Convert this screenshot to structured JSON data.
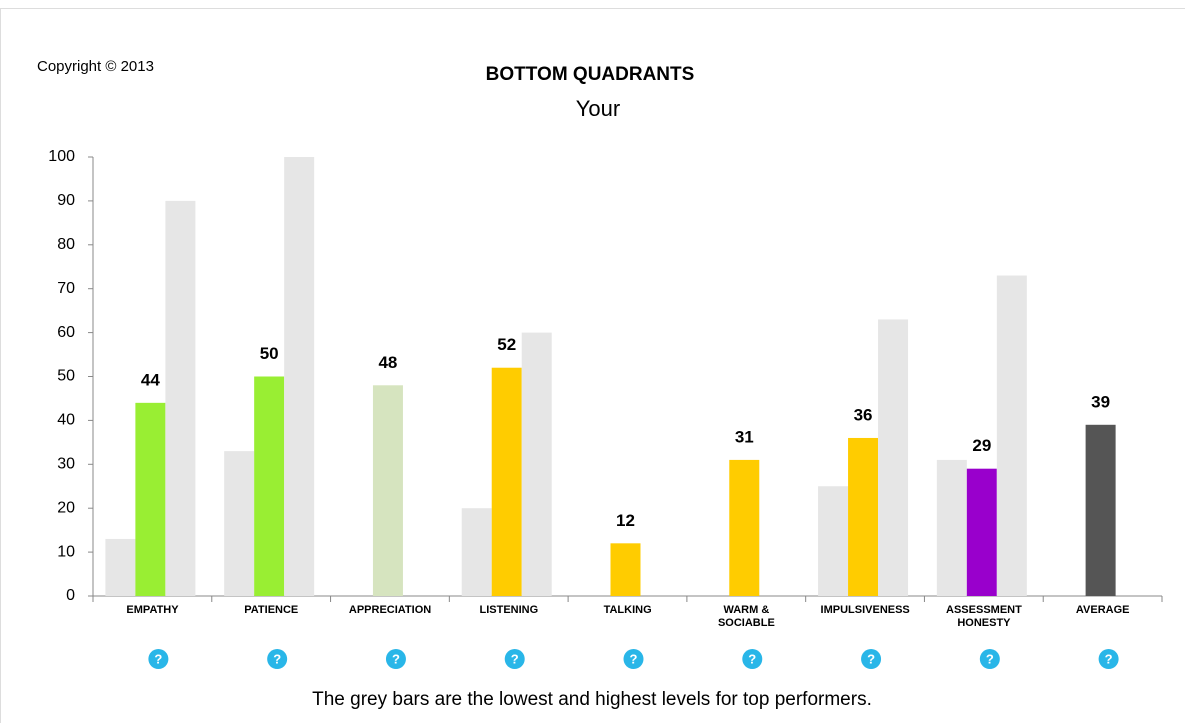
{
  "copyright": "Copyright © 2013",
  "chart_data": {
    "type": "bar",
    "title": "BOTTOM QUADRANTS",
    "subtitle": "Your",
    "categories": [
      "EMPATHY",
      "PATIENCE",
      "APPRECIATION",
      "LISTENING",
      "TALKING",
      "WARM & SOCIABLE",
      "IMPULSIVENESS",
      "ASSESSMENT HONESTY",
      "AVERAGE"
    ],
    "series": [
      {
        "color": "#e6e6e6",
        "values": [
          13,
          33,
          null,
          20,
          null,
          null,
          25,
          31,
          null
        ]
      },
      {
        "colors": [
          "#99ee33",
          "#99ee33",
          "#d6e4bf",
          "#ffcc00",
          "#ffcc00",
          "#ffcc00",
          "#ffcc00",
          "#9900cc",
          "#555555"
        ],
        "values": [
          44,
          50,
          48,
          52,
          12,
          31,
          36,
          29,
          39
        ],
        "labeled": true
      },
      {
        "color": "#e6e6e6",
        "values": [
          90,
          100,
          null,
          60,
          null,
          null,
          63,
          73,
          null
        ]
      }
    ],
    "ylim": [
      0,
      100
    ],
    "yticks": [
      0,
      10,
      20,
      30,
      40,
      50,
      60,
      70,
      80,
      90,
      100
    ],
    "grid": false
  },
  "help_icon": "?",
  "footer": "The grey bars are the lowest and highest levels for top performers."
}
